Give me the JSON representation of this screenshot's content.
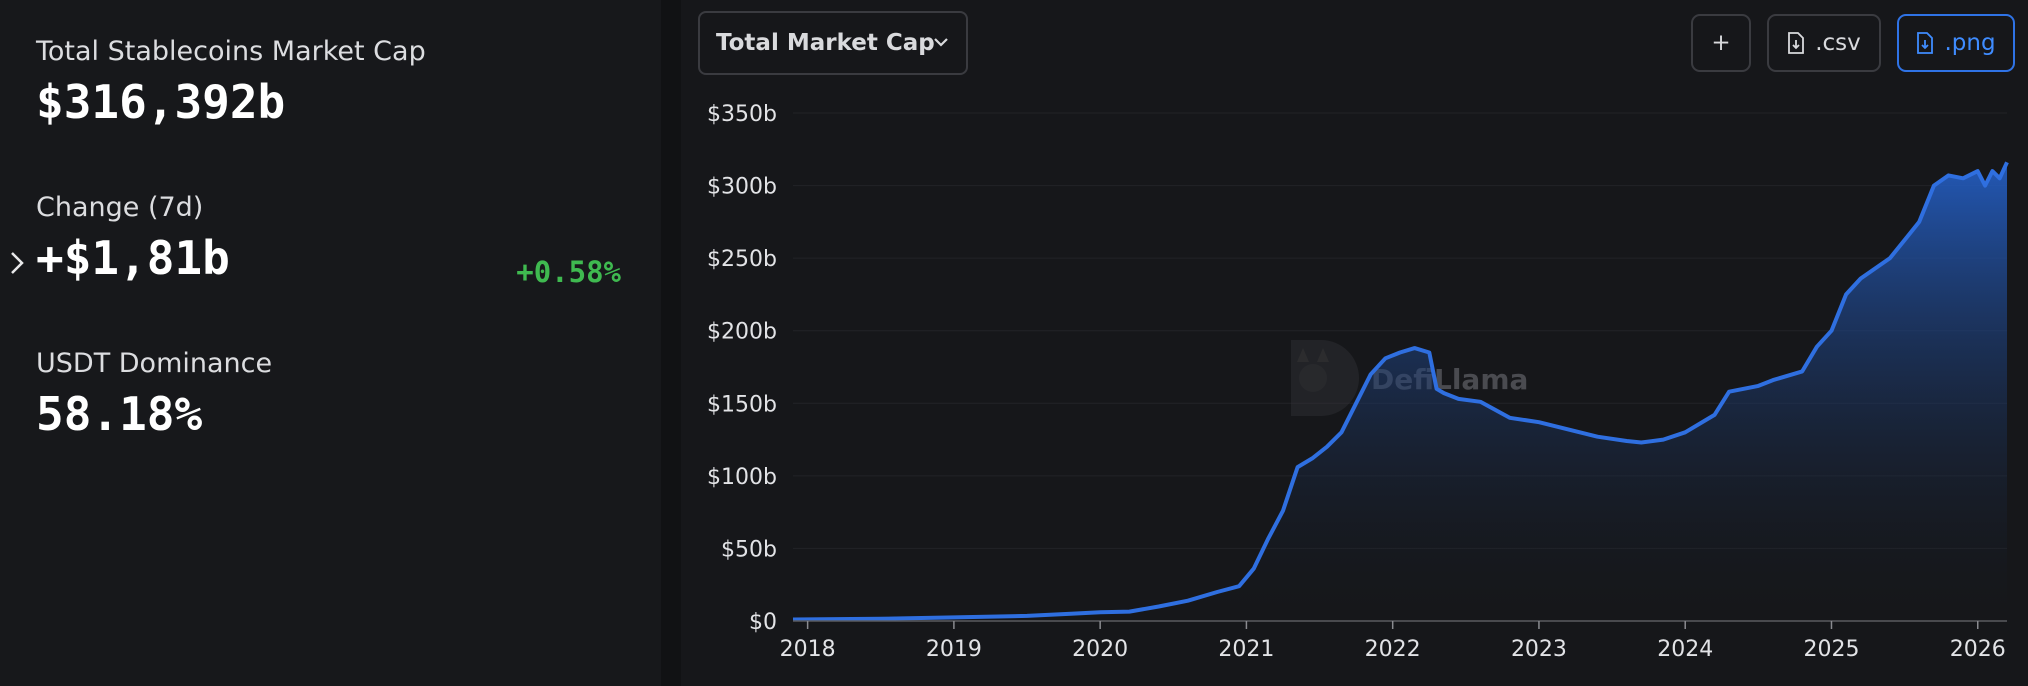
{
  "stats": {
    "market_cap_label": "Total Stablecoins Market Cap",
    "market_cap_value": "$316,392b",
    "change_label": "Change (7d)",
    "change_value": "+$1,81b",
    "change_pct": "+0.58%",
    "dominance_label": "USDT Dominance",
    "dominance_value": "58.18%"
  },
  "toolbar": {
    "metric_select": "Total Market Cap",
    "add_label": "+",
    "csv_label": ".csv",
    "png_label": ".png"
  },
  "watermark": "DefiLlama",
  "colors": {
    "line": "#2f6fe0",
    "positive": "#3fb950",
    "accent": "#3f8cff"
  },
  "chart_data": {
    "type": "area",
    "title": "",
    "xlabel": "",
    "ylabel": "",
    "x_ticks": [
      "2018",
      "2019",
      "2020",
      "2021",
      "2022",
      "2023",
      "2024",
      "2025",
      "2026"
    ],
    "y_ticks": [
      "$0",
      "$50b",
      "$100b",
      "$150b",
      "$200b",
      "$250b",
      "$300b",
      "$350b"
    ],
    "ylim": [
      0,
      350
    ],
    "xlim": [
      2017.9,
      2026.2
    ],
    "grid": true,
    "series": [
      {
        "x": [
          2017.9,
          2018.5,
          2019.0,
          2019.5,
          2019.8,
          2020.0,
          2020.2,
          2020.4,
          2020.6,
          2020.8,
          2020.95,
          2021.05,
          2021.15,
          2021.25,
          2021.35,
          2021.45,
          2021.55,
          2021.65,
          2021.75,
          2021.85,
          2021.95,
          2022.05,
          2022.15,
          2022.25,
          2022.3,
          2022.35,
          2022.45,
          2022.6,
          2022.8,
          2023.0,
          2023.2,
          2023.4,
          2023.6,
          2023.7,
          2023.85,
          2024.0,
          2024.2,
          2024.3,
          2024.5,
          2024.6,
          2024.8,
          2024.9,
          2025.0,
          2025.1,
          2025.2,
          2025.4,
          2025.6,
          2025.7,
          2025.8,
          2025.9,
          2026.0,
          2026.05,
          2026.1,
          2026.15,
          2026.2
        ],
        "y": [
          1,
          1.5,
          2.5,
          3.5,
          5,
          6,
          6.5,
          10,
          14,
          20,
          24,
          36,
          57,
          76,
          106,
          112,
          120,
          130,
          150,
          170,
          181,
          185,
          188,
          185,
          160,
          157,
          153,
          151,
          140,
          137,
          132,
          127,
          124,
          123,
          125,
          130,
          142,
          158,
          162,
          166,
          172,
          189,
          200,
          225,
          236,
          250,
          275,
          300,
          307,
          305,
          310,
          300,
          310,
          305,
          316
        ]
      }
    ]
  }
}
